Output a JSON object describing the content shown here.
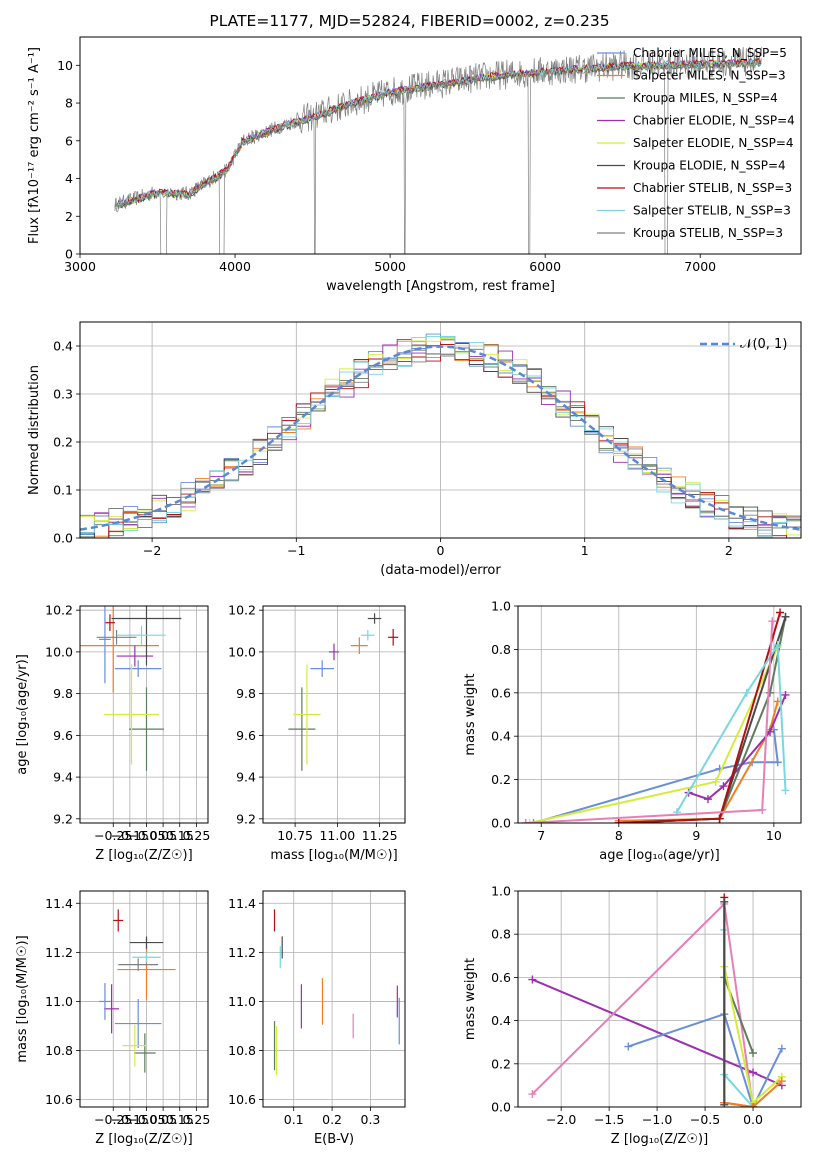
{
  "title": "PLATE=1177, MJD=52824, FIBERID=0002, z=0.235",
  "colors": {
    "c0": "#6a8fd8",
    "c1": "#f07f24",
    "c2": "#5e7c5e",
    "c3": "#9b2fb0",
    "c4": "#d4ec3c",
    "c5": "#4a4a4a",
    "c6": "#b01010",
    "c7": "#7ad6e0",
    "pink": "#e57fb5",
    "spec": "#808080",
    "normal": "#5b88d6"
  },
  "chart_data": [
    {
      "id": "spectrum",
      "type": "line",
      "xlabel": "wavelength [Angstrom, rest frame]",
      "ylabel": "Flux [fλ10⁻¹⁷ erg cm⁻² s⁻¹ A⁻¹]",
      "xlim": [
        3000,
        7650
      ],
      "ylim": [
        0,
        11.5
      ],
      "xticks": [
        "3000",
        "4000",
        "5000",
        "6000",
        "7000"
      ],
      "yticks": [
        "0",
        "2",
        "4",
        "6",
        "8",
        "10"
      ],
      "legend_placement": "top-right",
      "legend": [
        "Chabrier MILES, N_SSP=5",
        "Salpeter MILES, N_SSP=3",
        "Kroupa MILES, N_SSP=4",
        "Chabrier ELODIE, N_SSP=4",
        "Salpeter ELODIE, N_SSP=4",
        "Kroupa ELODIE, N_SSP=4",
        "Chabrier STELIB, N_SSP=3",
        "Salpeter STELIB, N_SSP=3",
        "Kroupa STELIB, N_SSP=3"
      ],
      "continuum_points": [
        [
          3225,
          2.6
        ],
        [
          3500,
          3.3
        ],
        [
          3700,
          3.2
        ],
        [
          3950,
          4.5
        ],
        [
          4050,
          6.0
        ],
        [
          4300,
          6.8
        ],
        [
          4500,
          7.3
        ],
        [
          4750,
          8.0
        ],
        [
          5000,
          8.6
        ],
        [
          5300,
          9.0
        ],
        [
          5600,
          9.4
        ],
        [
          6000,
          9.7
        ],
        [
          6500,
          10.0
        ],
        [
          7000,
          10.1
        ],
        [
          7400,
          10.2
        ]
      ]
    },
    {
      "id": "residuals",
      "type": "histogram",
      "xlabel": "(data-model)/error",
      "ylabel": "Normed distribution",
      "xlim": [
        -2.5,
        2.5
      ],
      "ylim": [
        0,
        0.45
      ],
      "xticks": [
        "−2",
        "−1",
        "0",
        "1",
        "2"
      ],
      "yticks": [
        "0.0",
        "0.1",
        "0.2",
        "0.3",
        "0.4"
      ],
      "grid": true,
      "legend_placement": "top-right",
      "legend": [
        "𝒩(0, 1)"
      ],
      "bin_width": 0.1
    },
    {
      "id": "age-vs-Z",
      "type": "errorbar",
      "xlabel": "Z [log₁₀(Z/Z☉)]",
      "ylabel": "age  [log₁₀(age/yr)]",
      "xlim": [
        -0.45,
        0.32
      ],
      "ylim": [
        9.18,
        10.22
      ],
      "xticks": [
        "−0.25",
        "−0.15",
        "−0.05",
        "0.05",
        "0.15",
        "0.25"
      ],
      "yticks": [
        "9.2",
        "9.4",
        "9.6",
        "9.8",
        "10.0",
        "10.2"
      ],
      "points": [
        {
          "x": -0.1,
          "xerr": 0.28,
          "y": 9.92,
          "yerr": 0.08
        },
        {
          "x": -0.25,
          "xerr": 0.55,
          "y": 10.03,
          "yerr": 0.45
        },
        {
          "x": -0.05,
          "xerr": 0.21,
          "y": 9.63,
          "yerr": 0.4
        },
        {
          "x": -0.12,
          "xerr": 0.22,
          "y": 9.98,
          "yerr": 0.1
        },
        {
          "x": -0.14,
          "xerr": 0.33,
          "y": 9.7,
          "yerr": 0.48
        },
        {
          "x": -0.05,
          "xerr": 0.42,
          "y": 10.16,
          "yerr": 0.45
        },
        {
          "x": -0.27,
          "xerr": 0.06,
          "y": 10.14,
          "yerr": 0.08
        },
        {
          "x": -0.08,
          "xerr": 0.29,
          "y": 10.08,
          "yerr": 0.09
        },
        {
          "x": -0.23,
          "xerr": 0.24,
          "y": 10.07,
          "yerr": 0.07
        },
        {
          "x": -0.3,
          "xerr": 0.07,
          "y": 10.06,
          "yerr": 0.42
        }
      ]
    },
    {
      "id": "age-vs-mass",
      "type": "errorbar",
      "xlabel": "mass [log₁₀(M/M☉)]",
      "ylabel": "",
      "xlim": [
        10.56,
        11.4
      ],
      "ylim": [
        9.18,
        10.22
      ],
      "xticks": [
        "10.75",
        "11.00",
        "11.25"
      ],
      "yticks": [
        "9.2",
        "9.4",
        "9.6",
        "9.8",
        "10.0",
        "10.2"
      ],
      "points": [
        {
          "x": 10.91,
          "xerr": 0.14,
          "y": 9.92,
          "yerr": 0.08
        },
        {
          "x": 11.13,
          "xerr": 0.1,
          "y": 10.03,
          "yerr": 0.08
        },
        {
          "x": 10.79,
          "xerr": 0.16,
          "y": 9.63,
          "yerr": 0.4
        },
        {
          "x": 10.98,
          "xerr": 0.06,
          "y": 10.0,
          "yerr": 0.08
        },
        {
          "x": 10.82,
          "xerr": 0.16,
          "y": 9.7,
          "yerr": 0.48
        },
        {
          "x": 11.22,
          "xerr": 0.08,
          "y": 10.16,
          "yerr": 0.05
        },
        {
          "x": 11.33,
          "xerr": 0.06,
          "y": 10.07,
          "yerr": 0.08
        },
        {
          "x": 11.18,
          "xerr": 0.08,
          "y": 10.08,
          "yerr": 0.05
        }
      ]
    },
    {
      "id": "weight-vs-age",
      "type": "line",
      "xlabel": "age  [log₁₀(age/yr)]",
      "ylabel": "mass weight",
      "xlim": [
        6.7,
        10.35
      ],
      "ylim": [
        0,
        1.0
      ],
      "xticks": [
        "7",
        "8",
        "9",
        "10"
      ],
      "yticks": [
        "0.0",
        "0.2",
        "0.4",
        "0.6",
        "0.8",
        "1.0"
      ],
      "grid": true,
      "series": [
        {
          "color": "c0",
          "values": [
            [
              6.9,
              0.0
            ],
            [
              9.3,
              0.25
            ],
            [
              9.72,
              0.28
            ],
            [
              10.05,
              0.28
            ],
            [
              10.0,
              0.43
            ]
          ]
        },
        {
          "color": "c1",
          "values": [
            [
              8.0,
              0.01
            ],
            [
              9.3,
              0.02
            ],
            [
              9.95,
              0.43
            ],
            [
              10.05,
              0.56
            ]
          ]
        },
        {
          "color": "c2",
          "values": [
            [
              8.0,
              0.0
            ],
            [
              9.3,
              0.02
            ],
            [
              9.95,
              0.6
            ],
            [
              10.15,
              0.95
            ]
          ]
        },
        {
          "color": "c3",
          "values": [
            [
              8.9,
              0.14
            ],
            [
              9.15,
              0.11
            ],
            [
              9.35,
              0.17
            ],
            [
              9.95,
              0.42
            ],
            [
              10.15,
              0.59
            ]
          ]
        },
        {
          "color": "c4",
          "values": [
            [
              6.85,
              0.0
            ],
            [
              9.25,
              0.19
            ],
            [
              10.05,
              0.81
            ]
          ]
        },
        {
          "color": "c5",
          "values": [
            [
              8.0,
              0.0
            ],
            [
              9.3,
              0.02
            ],
            [
              10.15,
              0.95
            ]
          ]
        },
        {
          "color": "c6",
          "values": [
            [
              8.0,
              0.0
            ],
            [
              9.3,
              0.02
            ],
            [
              10.08,
              0.97
            ]
          ]
        },
        {
          "color": "c7",
          "values": [
            [
              8.75,
              0.05
            ],
            [
              9.65,
              0.6
            ],
            [
              10.05,
              0.82
            ],
            [
              10.15,
              0.15
            ]
          ]
        },
        {
          "color": "pink",
          "values": [
            [
              6.8,
              0.0
            ],
            [
              9.85,
              0.06
            ],
            [
              9.98,
              0.93
            ]
          ]
        }
      ]
    },
    {
      "id": "mass-vs-Z",
      "type": "errorbar",
      "xlabel": "Z [log₁₀(Z/Z☉)]",
      "ylabel": "mass [log₁₀(M/M☉)]",
      "xlim": [
        -0.45,
        0.32
      ],
      "ylim": [
        10.57,
        11.45
      ],
      "xticks": [
        "−0.25",
        "−0.15",
        "−0.05",
        "0.05",
        "0.15",
        "0.25"
      ],
      "yticks": [
        "10.6",
        "10.8",
        "11.0",
        "11.2",
        "11.4"
      ],
      "points": [
        {
          "x": -0.1,
          "xerr": 0.28,
          "y": 10.91,
          "yerr": 0.2
        },
        {
          "x": -0.05,
          "xerr": 0.35,
          "y": 11.13,
          "yerr": 0.25
        },
        {
          "x": -0.06,
          "xerr": 0.13,
          "y": 10.79,
          "yerr": 0.16
        },
        {
          "x": -0.26,
          "xerr": 0.09,
          "y": 10.97,
          "yerr": 0.2
        },
        {
          "x": -0.12,
          "xerr": 0.15,
          "y": 10.82,
          "yerr": 0.17
        },
        {
          "x": -0.05,
          "xerr": 0.2,
          "y": 11.24,
          "yerr": 0.05
        },
        {
          "x": -0.22,
          "xerr": 0.06,
          "y": 11.33,
          "yerr": 0.09
        },
        {
          "x": -0.05,
          "xerr": 0.17,
          "y": 11.18,
          "yerr": 0.04
        },
        {
          "x": -0.1,
          "xerr": 0.24,
          "y": 11.15,
          "yerr": 0.05
        },
        {
          "x": -0.3,
          "xerr": 0.07,
          "y": 11.0,
          "yerr": 0.15
        }
      ]
    },
    {
      "id": "mass-vs-EBV",
      "type": "errorbar",
      "xlabel": "E(B-V)",
      "ylabel": "",
      "xlim": [
        0.02,
        0.39
      ],
      "ylim": [
        10.57,
        11.45
      ],
      "xticks": [
        "0.1",
        "0.2",
        "0.3"
      ],
      "yticks": [
        "10.6",
        "10.8",
        "11.0",
        "11.2",
        "11.4"
      ],
      "points": [
        {
          "color": "c6",
          "x": 0.05,
          "y": 11.33,
          "yerr": 0.09
        },
        {
          "color": "c2",
          "x": 0.05,
          "y": 10.82,
          "yerr": 0.2
        },
        {
          "color": "c4",
          "x": 0.055,
          "y": 10.8,
          "yerr": 0.2
        },
        {
          "color": "c7",
          "x": 0.065,
          "y": 11.18,
          "yerr": 0.09
        },
        {
          "color": "c5",
          "x": 0.07,
          "y": 11.22,
          "yerr": 0.09
        },
        {
          "color": "c3",
          "x": 0.12,
          "y": 10.98,
          "yerr": 0.18
        },
        {
          "color": "c1",
          "x": 0.175,
          "y": 11.0,
          "yerr": 0.19
        },
        {
          "color": "pink",
          "x": 0.255,
          "y": 10.9,
          "yerr": 0.1
        },
        {
          "color": "c3",
          "x": 0.37,
          "y": 11.0,
          "yerr": 0.13
        },
        {
          "color": "c0",
          "x": 0.375,
          "y": 10.92,
          "yerr": 0.19
        }
      ]
    },
    {
      "id": "weight-vs-Z",
      "type": "line",
      "xlabel": "Z [log₁₀(Z/Z☉)]",
      "ylabel": "mass weight",
      "xlim": [
        -2.45,
        0.5
      ],
      "ylim": [
        0,
        1.0
      ],
      "xticks": [
        "−2.0",
        "−1.5",
        "−1.0",
        "−0.5",
        "0.0"
      ],
      "yticks": [
        "0.0",
        "0.2",
        "0.4",
        "0.6",
        "0.8",
        "1.0"
      ],
      "grid": true,
      "series": [
        {
          "color": "c3",
          "values": [
            [
              -2.3,
              0.59
            ],
            [
              0.0,
              0.16
            ],
            [
              0.3,
              0.1
            ]
          ]
        },
        {
          "color": "pink",
          "values": [
            [
              -2.3,
              0.06
            ],
            [
              -0.3,
              0.94
            ],
            [
              0.0,
              0.0
            ]
          ]
        },
        {
          "color": "c0",
          "values": [
            [
              -1.3,
              0.28
            ],
            [
              -0.3,
              0.43
            ],
            [
              0.0,
              0.0
            ],
            [
              0.3,
              0.27
            ]
          ]
        },
        {
          "color": "c2",
          "values": [
            [
              -0.3,
              0.6
            ],
            [
              0.0,
              0.25
            ]
          ]
        },
        {
          "color": "c4",
          "values": [
            [
              -0.3,
              0.65
            ],
            [
              0.0,
              0.02
            ],
            [
              0.3,
              0.14
            ]
          ]
        },
        {
          "color": "c7",
          "values": [
            [
              -0.3,
              0.82
            ],
            [
              -0.3,
              0.15
            ],
            [
              0.0,
              0.0
            ]
          ]
        },
        {
          "color": "c6",
          "values": [
            [
              -0.3,
              0.97
            ],
            [
              -0.3,
              0.02
            ],
            [
              0.0,
              0.0
            ]
          ]
        },
        {
          "color": "c1",
          "values": [
            [
              -0.3,
              0.02
            ],
            [
              0.0,
              0.0
            ],
            [
              0.3,
              0.12
            ]
          ]
        },
        {
          "color": "c5",
          "values": [
            [
              -0.3,
              0.95
            ],
            [
              -0.3,
              0.01
            ]
          ]
        }
      ]
    }
  ]
}
